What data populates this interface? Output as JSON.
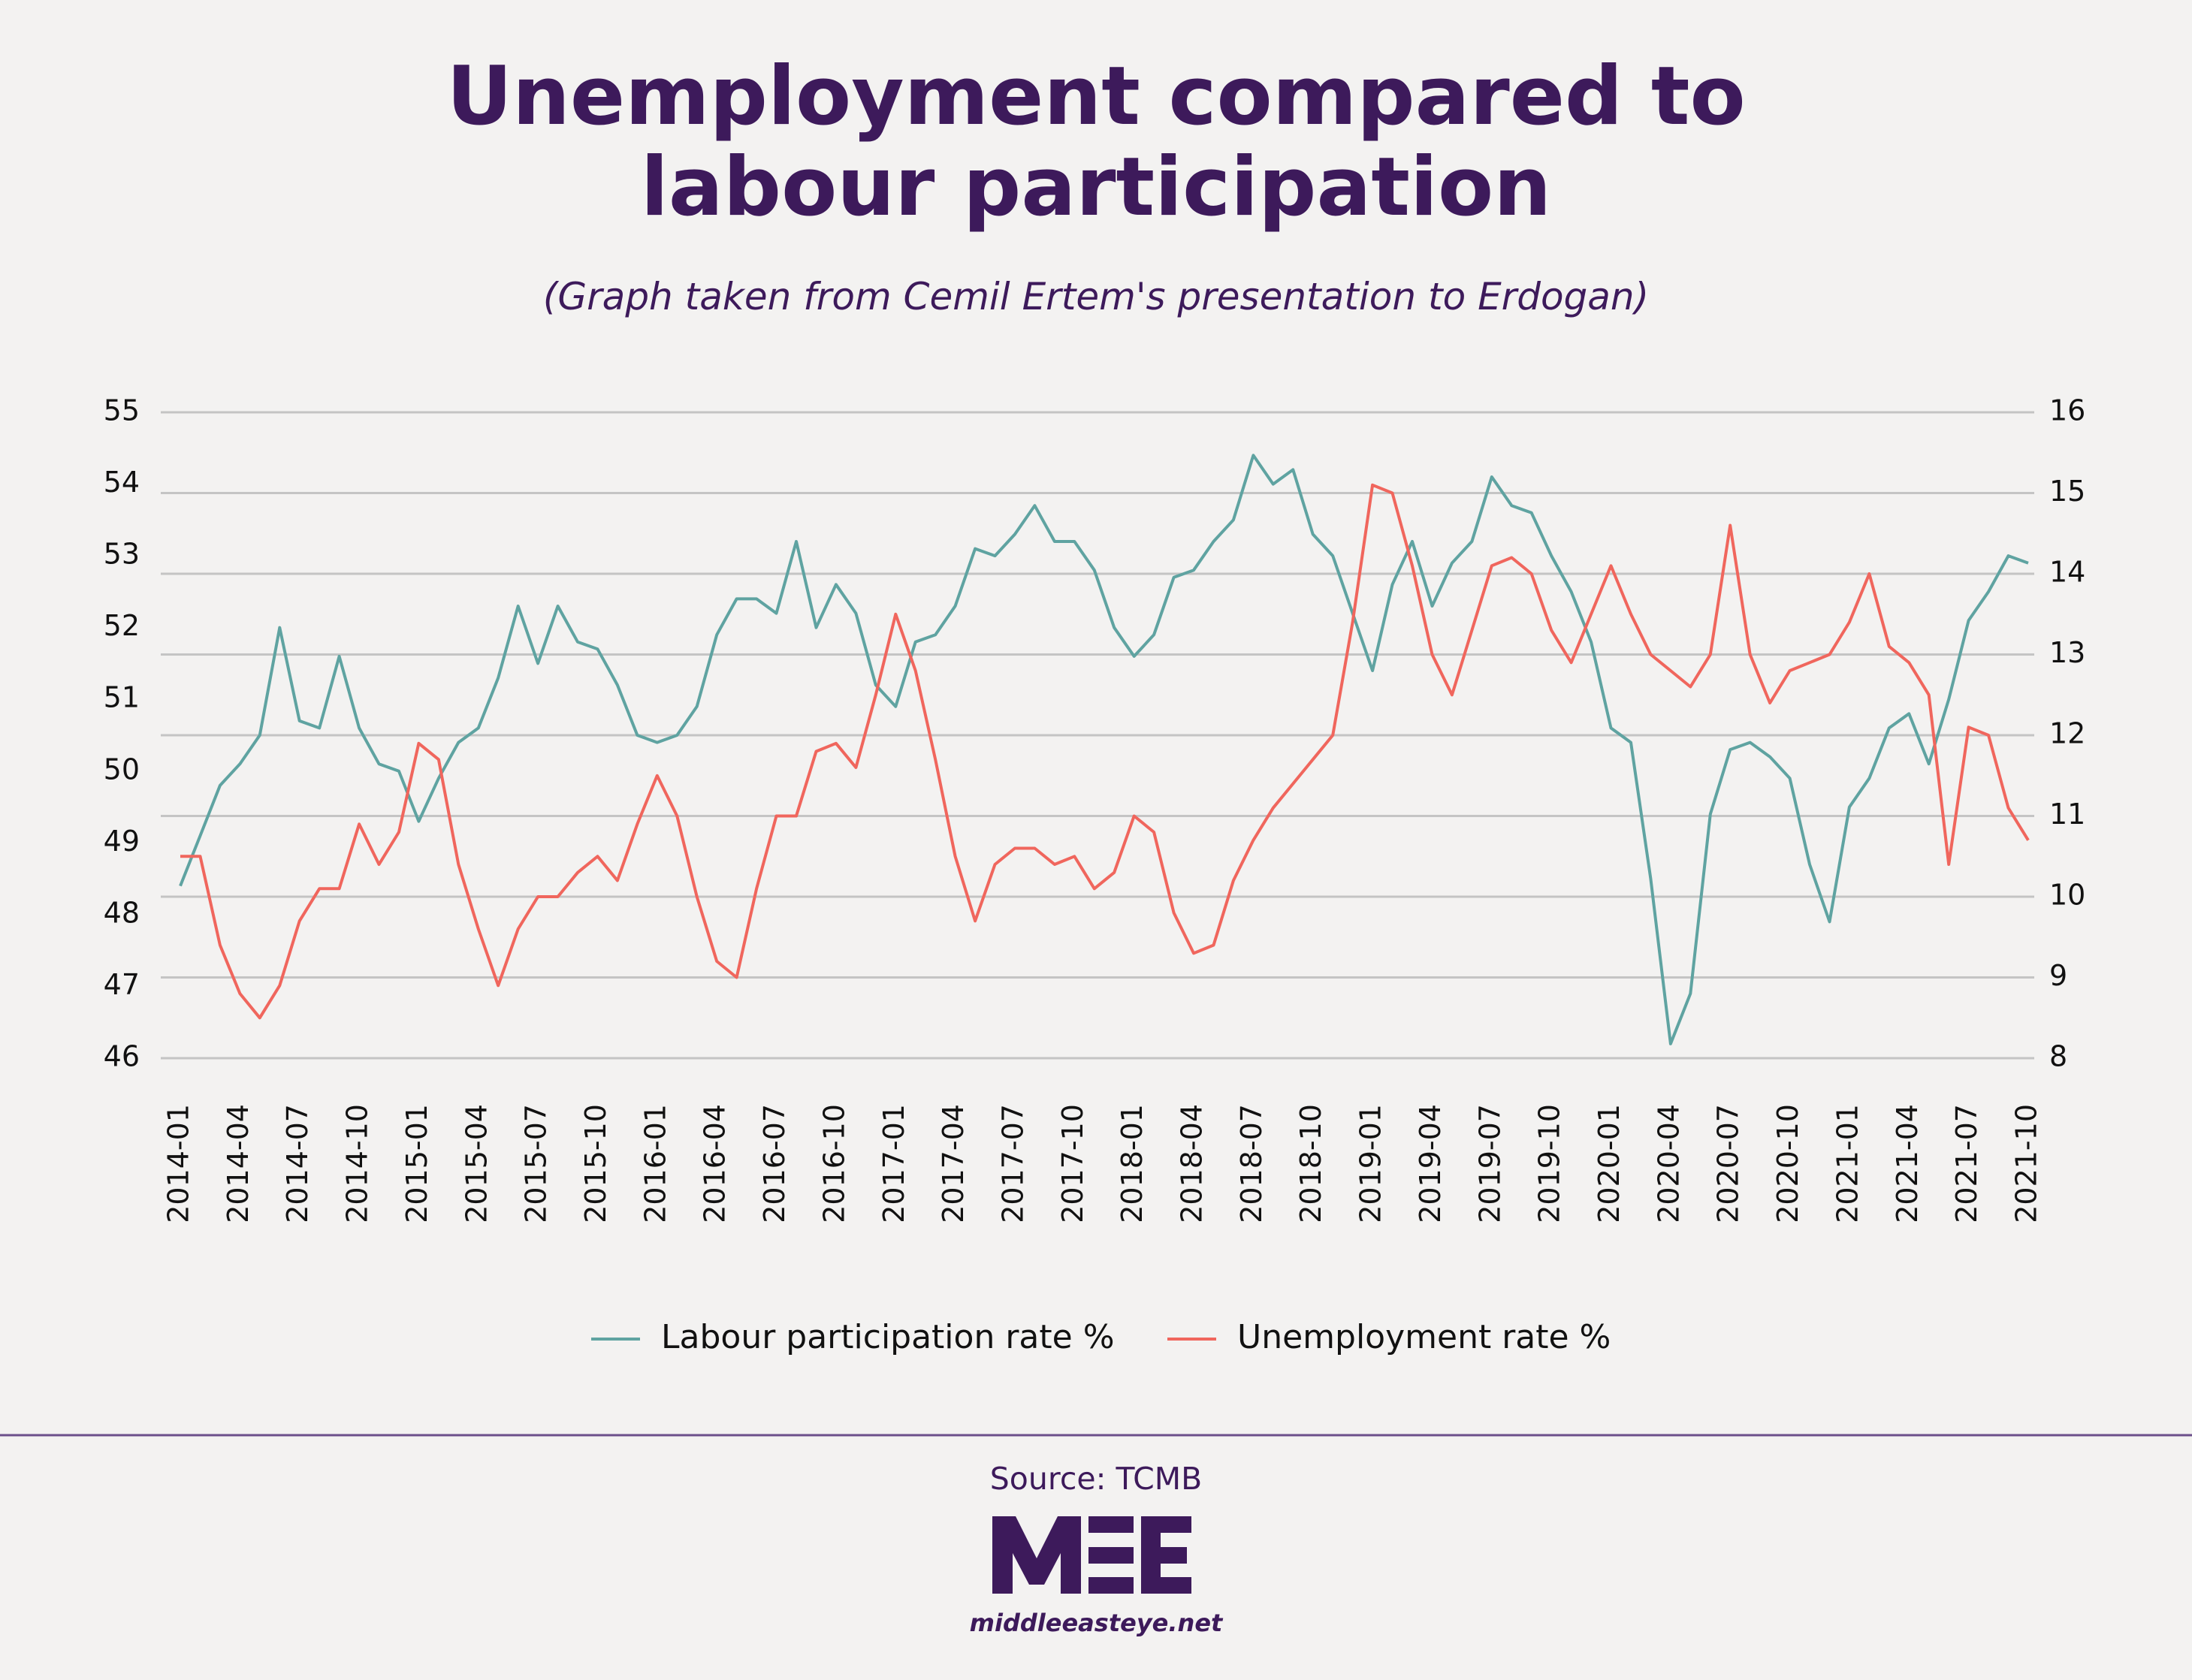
{
  "chart_data": {
    "type": "line",
    "title": "Unemployment compared to labour participation",
    "subtitle": "(Graph taken from Cemil Ertem's presentation to Erdogan)",
    "source": "Source: TCMB",
    "site": "middleeasteye.net",
    "categories": [
      "2014-01",
      null,
      null,
      "2014-04",
      null,
      null,
      "2014-07",
      null,
      null,
      "2014-10",
      null,
      null,
      "2015-01",
      null,
      null,
      "2015-04",
      null,
      null,
      "2015-07",
      null,
      null,
      "2015-10",
      null,
      null,
      "2016-01",
      null,
      null,
      "2016-04",
      null,
      null,
      "2016-07",
      null,
      null,
      "2016-10",
      null,
      null,
      "2017-01",
      null,
      null,
      "2017-04",
      null,
      null,
      "2017-07",
      null,
      null,
      "2017-10",
      null,
      null,
      "2018-01",
      null,
      null,
      "2018-04",
      null,
      null,
      "2018-07",
      null,
      null,
      "2018-10",
      null,
      null,
      "2019-01",
      null,
      null,
      "2019-04",
      null,
      null,
      "2019-07",
      null,
      null,
      "2019-10",
      null,
      null,
      "2020-01",
      null,
      null,
      "2020-04",
      null,
      null,
      "2020-07",
      null,
      null,
      "2020-10",
      null,
      null,
      "2021-01",
      null,
      null,
      "2021-04",
      null,
      null,
      "2021-07",
      null,
      null,
      "2021-10"
    ],
    "series": [
      {
        "name": "Labour participation rate %",
        "color": "#5fa3a1",
        "axis": "y",
        "values": [
          48.4,
          49.1,
          49.8,
          50.1,
          50.5,
          52.0,
          50.7,
          50.6,
          51.6,
          50.6,
          50.1,
          50.0,
          49.3,
          49.9,
          50.4,
          50.6,
          51.3,
          52.3,
          51.5,
          52.3,
          51.8,
          51.7,
          51.2,
          50.5,
          50.4,
          50.5,
          50.9,
          51.9,
          52.4,
          52.4,
          52.2,
          53.2,
          52.0,
          52.6,
          52.2,
          51.2,
          50.9,
          51.8,
          51.9,
          52.3,
          53.1,
          53.0,
          53.3,
          53.7,
          53.2,
          53.2,
          52.8,
          52.0,
          51.6,
          51.9,
          52.7,
          52.8,
          53.2,
          53.5,
          54.4,
          54.0,
          54.2,
          53.3,
          53.0,
          52.2,
          51.4,
          52.6,
          53.2,
          52.3,
          52.9,
          53.2,
          54.1,
          53.7,
          53.6,
          53.0,
          52.5,
          51.8,
          50.6,
          50.4,
          48.5,
          46.2,
          46.9,
          49.4,
          50.3,
          50.4,
          50.2,
          49.9,
          48.7,
          47.9,
          49.5,
          49.9,
          50.6,
          50.8,
          50.1,
          51.0,
          52.1,
          52.5,
          53.0,
          52.9
        ]
      },
      {
        "name": "Unemployment rate %",
        "color": "#f0665d",
        "axis": "y2",
        "values": [
          10.5,
          10.5,
          9.4,
          8.8,
          8.5,
          8.9,
          9.7,
          10.1,
          10.1,
          10.9,
          10.4,
          10.8,
          11.9,
          11.7,
          10.4,
          9.6,
          8.9,
          9.6,
          10.0,
          10.0,
          10.3,
          10.5,
          10.2,
          10.9,
          11.5,
          11.0,
          10.0,
          9.2,
          9.0,
          10.1,
          11.0,
          11.0,
          11.8,
          11.9,
          11.6,
          12.5,
          13.5,
          12.8,
          11.7,
          10.5,
          9.7,
          10.4,
          10.6,
          10.6,
          10.4,
          10.5,
          10.1,
          10.3,
          11.0,
          10.8,
          9.8,
          9.3,
          9.4,
          10.2,
          10.7,
          11.1,
          11.4,
          11.7,
          12.0,
          13.4,
          15.1,
          15.0,
          14.1,
          13.0,
          12.5,
          13.3,
          14.1,
          14.2,
          14.0,
          13.3,
          12.9,
          13.5,
          14.1,
          13.5,
          13.0,
          12.8,
          12.6,
          13.0,
          14.6,
          13.0,
          12.4,
          12.8,
          12.9,
          13.0,
          13.4,
          14.0,
          13.1,
          12.9,
          12.5,
          10.4,
          12.1,
          12.0,
          11.1,
          10.7
        ]
      }
    ],
    "ylim": [
      46,
      55
    ],
    "yticks": [
      46,
      47,
      48,
      49,
      50,
      51,
      52,
      53,
      54,
      55
    ],
    "y2lim": [
      8,
      16
    ],
    "y2ticks": [
      8,
      9,
      10,
      11,
      12,
      13,
      14,
      15,
      16
    ],
    "grid": true
  }
}
